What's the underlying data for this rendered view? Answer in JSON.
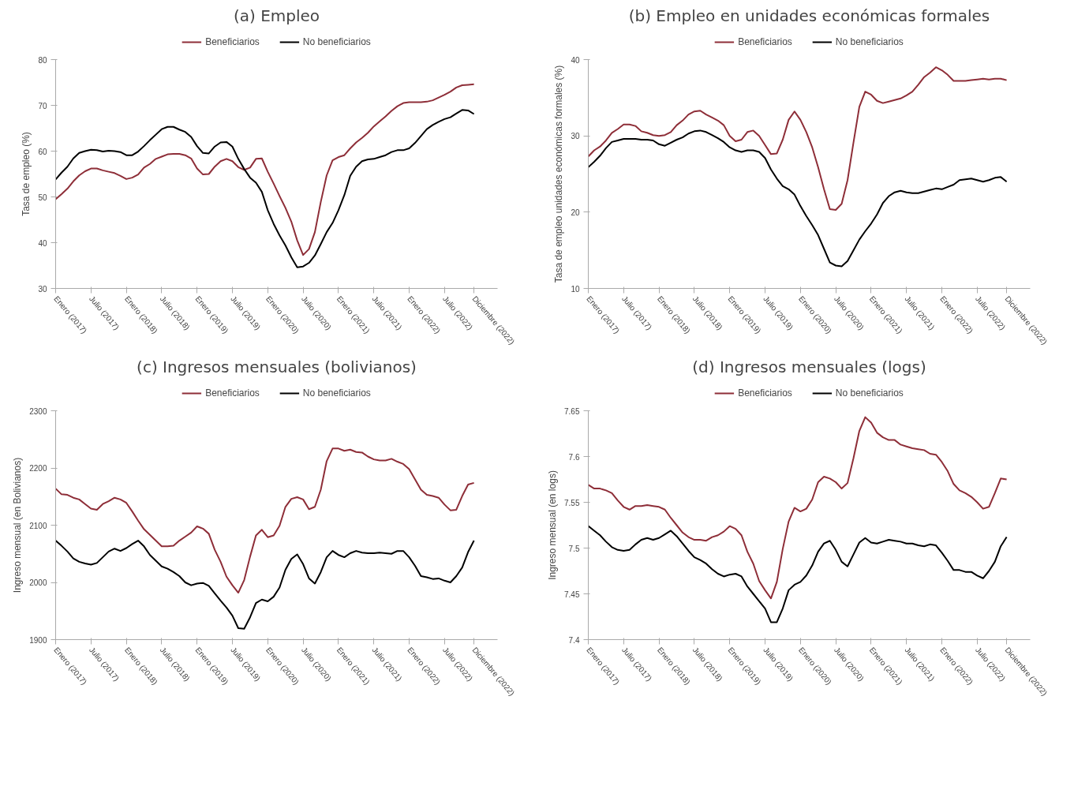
{
  "chart_data": [
    {
      "type": "line",
      "title": "(a) Empleo",
      "ylabel": "Tasa de empleo (%)",
      "legend": "top",
      "grid": false,
      "line_style": "solid",
      "marker": "none",
      "x": [
        "2017-01",
        "2017-02",
        "2017-03",
        "2017-04",
        "2017-05",
        "2017-06",
        "2017-07",
        "2017-08",
        "2017-09",
        "2017-10",
        "2017-11",
        "2017-12",
        "2018-01",
        "2018-02",
        "2018-03",
        "2018-04",
        "2018-05",
        "2018-06",
        "2018-07",
        "2018-08",
        "2018-09",
        "2018-10",
        "2018-11",
        "2018-12",
        "2019-01",
        "2019-02",
        "2019-03",
        "2019-04",
        "2019-05",
        "2019-06",
        "2019-07",
        "2019-08",
        "2019-09",
        "2019-10",
        "2019-11",
        "2019-12",
        "2020-01",
        "2020-02",
        "2020-03",
        "2020-04",
        "2020-05",
        "2020-06",
        "2020-07",
        "2020-08",
        "2020-09",
        "2020-10",
        "2020-11",
        "2020-12",
        "2021-01",
        "2021-02",
        "2021-03",
        "2021-04",
        "2021-05",
        "2021-06",
        "2021-07",
        "2021-08",
        "2021-09",
        "2021-10",
        "2021-11",
        "2021-12",
        "2022-01",
        "2022-02",
        "2022-03",
        "2022-04",
        "2022-05",
        "2022-06",
        "2022-07",
        "2022-08",
        "2022-09",
        "2022-10",
        "2022-11",
        "2022-12"
      ],
      "xlim": [
        "2017-01",
        "2023-04"
      ],
      "xticks": [
        {
          "value": "2017-01",
          "label": "Enero (2017)"
        },
        {
          "value": "2017-07",
          "label": "Julio (2017)"
        },
        {
          "value": "2018-01",
          "label": "Enero (2018)"
        },
        {
          "value": "2018-07",
          "label": "Julio (2018)"
        },
        {
          "value": "2019-01",
          "label": "Enero (2019)"
        },
        {
          "value": "2019-07",
          "label": "Julio (2019)"
        },
        {
          "value": "2020-01",
          "label": "Enero (2020)"
        },
        {
          "value": "2020-07",
          "label": "Julio (2020)"
        },
        {
          "value": "2021-01",
          "label": "Enero (2021)"
        },
        {
          "value": "2021-07",
          "label": "Julio (2021)"
        },
        {
          "value": "2022-01",
          "label": "Enero (2022)"
        },
        {
          "value": "2022-07",
          "label": "Julio (2022)"
        },
        {
          "value": "2022-12",
          "label": "Diciembre (2022)"
        }
      ],
      "ylim": [
        30,
        80
      ],
      "yticks": [
        30,
        40,
        50,
        60,
        70,
        80
      ],
      "series": [
        {
          "name": "Beneficiarios",
          "color": "#8e2e38",
          "values": [
            49.5,
            50.6,
            51.8,
            53.4,
            54.7,
            55.6,
            56.2,
            56.2,
            55.8,
            55.5,
            55.2,
            54.6,
            53.9,
            54.2,
            54.9,
            56.4,
            57.2,
            58.3,
            58.8,
            59.3,
            59.4,
            59.4,
            59.1,
            58.4,
            56.2,
            54.9,
            55.0,
            56.6,
            57.8,
            58.3,
            57.8,
            56.5,
            55.9,
            56.4,
            58.3,
            58.4,
            55.5,
            52.9,
            50.2,
            47.6,
            44.6,
            40.5,
            37.3,
            38.6,
            42.3,
            48.9,
            54.7,
            58.0,
            58.7,
            59.1,
            60.6,
            61.9,
            62.9,
            64.0,
            65.4,
            66.5,
            67.6,
            68.8,
            69.8,
            70.5,
            70.7,
            70.7,
            70.7,
            70.8,
            71.1,
            71.7,
            72.3,
            73.0,
            73.9,
            74.4,
            74.5,
            74.6
          ]
        },
        {
          "name": "No beneficiarios",
          "color": "#000000",
          "values": [
            53.8,
            55.3,
            56.6,
            58.4,
            59.6,
            60.0,
            60.3,
            60.2,
            59.9,
            60.1,
            60.0,
            59.8,
            59.1,
            59.1,
            59.9,
            61.1,
            62.4,
            63.6,
            64.8,
            65.3,
            65.3,
            64.7,
            64.2,
            63.1,
            61.1,
            59.6,
            59.5,
            61.0,
            61.9,
            62.0,
            61.0,
            58.3,
            56.1,
            54.2,
            53.1,
            51.1,
            47.1,
            44.1,
            41.6,
            39.4,
            36.8,
            34.6,
            34.8,
            35.6,
            37.2,
            39.7,
            42.3,
            44.3,
            47.1,
            50.4,
            54.6,
            56.6,
            57.8,
            58.2,
            58.3,
            58.7,
            59.1,
            59.8,
            60.2,
            60.2,
            60.6,
            61.8,
            63.3,
            64.8,
            65.7,
            66.4,
            67.0,
            67.4,
            68.2,
            69.0,
            68.9,
            68.1
          ]
        }
      ]
    },
    {
      "type": "line",
      "title": "(b) Empleo en unidades económicas formales",
      "ylabel": "Tasa de empleo unidades económicas formales (%)",
      "legend": "top",
      "grid": false,
      "line_style": "solid",
      "marker": "none",
      "x": [
        "2017-01",
        "2017-02",
        "2017-03",
        "2017-04",
        "2017-05",
        "2017-06",
        "2017-07",
        "2017-08",
        "2017-09",
        "2017-10",
        "2017-11",
        "2017-12",
        "2018-01",
        "2018-02",
        "2018-03",
        "2018-04",
        "2018-05",
        "2018-06",
        "2018-07",
        "2018-08",
        "2018-09",
        "2018-10",
        "2018-11",
        "2018-12",
        "2019-01",
        "2019-02",
        "2019-03",
        "2019-04",
        "2019-05",
        "2019-06",
        "2019-07",
        "2019-08",
        "2019-09",
        "2019-10",
        "2019-11",
        "2019-12",
        "2020-01",
        "2020-02",
        "2020-03",
        "2020-04",
        "2020-05",
        "2020-06",
        "2020-07",
        "2020-08",
        "2020-09",
        "2020-10",
        "2020-11",
        "2020-12",
        "2021-01",
        "2021-02",
        "2021-03",
        "2021-04",
        "2021-05",
        "2021-06",
        "2021-07",
        "2021-08",
        "2021-09",
        "2021-10",
        "2021-11",
        "2021-12",
        "2022-01",
        "2022-02",
        "2022-03",
        "2022-04",
        "2022-05",
        "2022-06",
        "2022-07",
        "2022-08",
        "2022-09",
        "2022-10",
        "2022-11",
        "2022-12"
      ],
      "xlim": [
        "2017-01",
        "2023-04"
      ],
      "xticks": [
        {
          "value": "2017-01",
          "label": "Enero (2017)"
        },
        {
          "value": "2017-07",
          "label": "Julio (2017)"
        },
        {
          "value": "2018-01",
          "label": "Enero (2018)"
        },
        {
          "value": "2018-07",
          "label": "Julio (2018)"
        },
        {
          "value": "2019-01",
          "label": "Enero (2019)"
        },
        {
          "value": "2019-07",
          "label": "Julio (2019)"
        },
        {
          "value": "2020-01",
          "label": "Enero (2020)"
        },
        {
          "value": "2020-07",
          "label": "Julio (2020)"
        },
        {
          "value": "2021-01",
          "label": "Enero (2021)"
        },
        {
          "value": "2021-07",
          "label": "Julio (2021)"
        },
        {
          "value": "2022-01",
          "label": "Enero (2022)"
        },
        {
          "value": "2022-07",
          "label": "Julio (2022)"
        },
        {
          "value": "2022-12",
          "label": "Diciembre (2022)"
        }
      ],
      "ylim": [
        10,
        40
      ],
      "yticks": [
        10,
        20,
        30,
        40
      ],
      "series": [
        {
          "name": "Beneficiarios",
          "color": "#8e2e38",
          "values": [
            27.3,
            28.1,
            28.6,
            29.4,
            30.4,
            30.9,
            31.5,
            31.5,
            31.3,
            30.6,
            30.4,
            30.1,
            30.0,
            30.1,
            30.5,
            31.4,
            32.0,
            32.8,
            33.2,
            33.3,
            32.8,
            32.4,
            32.0,
            31.4,
            30.0,
            29.3,
            29.5,
            30.5,
            30.7,
            30.0,
            28.8,
            27.6,
            27.7,
            29.5,
            32.1,
            33.2,
            32.1,
            30.5,
            28.5,
            25.9,
            23.0,
            20.4,
            20.3,
            21.1,
            24.2,
            29.1,
            33.8,
            35.8,
            35.4,
            34.6,
            34.3,
            34.5,
            34.7,
            34.9,
            35.3,
            35.8,
            36.7,
            37.7,
            38.3,
            39.0,
            38.6,
            38.0,
            37.2,
            37.2,
            37.2,
            37.3,
            37.4,
            37.5,
            37.4,
            37.5,
            37.5,
            37.3
          ]
        },
        {
          "name": "No beneficiarios",
          "color": "#000000",
          "values": [
            25.9,
            26.6,
            27.4,
            28.4,
            29.2,
            29.4,
            29.6,
            29.6,
            29.6,
            29.5,
            29.5,
            29.4,
            28.9,
            28.7,
            29.1,
            29.5,
            29.8,
            30.3,
            30.6,
            30.7,
            30.5,
            30.1,
            29.7,
            29.2,
            28.5,
            28.1,
            27.9,
            28.1,
            28.1,
            27.9,
            27.1,
            25.6,
            24.4,
            23.4,
            23.0,
            22.3,
            20.8,
            19.5,
            18.3,
            17.0,
            15.2,
            13.4,
            13.0,
            12.9,
            13.6,
            15.0,
            16.4,
            17.5,
            18.5,
            19.7,
            21.2,
            22.1,
            22.6,
            22.8,
            22.6,
            22.5,
            22.5,
            22.7,
            22.9,
            23.1,
            23.0,
            23.3,
            23.6,
            24.2,
            24.3,
            24.4,
            24.2,
            24.0,
            24.2,
            24.5,
            24.6,
            24.0
          ]
        }
      ]
    },
    {
      "type": "line",
      "title": "(c) Ingresos mensuales (bolivianos)",
      "ylabel": "Ingreso mensual (en Bolivianos)",
      "legend": "top",
      "grid": false,
      "line_style": "solid",
      "marker": "none",
      "x": [
        "2017-01",
        "2017-02",
        "2017-03",
        "2017-04",
        "2017-05",
        "2017-06",
        "2017-07",
        "2017-08",
        "2017-09",
        "2017-10",
        "2017-11",
        "2017-12",
        "2018-01",
        "2018-02",
        "2018-03",
        "2018-04",
        "2018-05",
        "2018-06",
        "2018-07",
        "2018-08",
        "2018-09",
        "2018-10",
        "2018-11",
        "2018-12",
        "2019-01",
        "2019-02",
        "2019-03",
        "2019-04",
        "2019-05",
        "2019-06",
        "2019-07",
        "2019-08",
        "2019-09",
        "2019-10",
        "2019-11",
        "2019-12",
        "2020-01",
        "2020-02",
        "2020-03",
        "2020-04",
        "2020-05",
        "2020-06",
        "2020-07",
        "2020-08",
        "2020-09",
        "2020-10",
        "2020-11",
        "2020-12",
        "2021-01",
        "2021-02",
        "2021-03",
        "2021-04",
        "2021-05",
        "2021-06",
        "2021-07",
        "2021-08",
        "2021-09",
        "2021-10",
        "2021-11",
        "2021-12",
        "2022-01",
        "2022-02",
        "2022-03",
        "2022-04",
        "2022-05",
        "2022-06",
        "2022-07",
        "2022-08",
        "2022-09",
        "2022-10",
        "2022-11",
        "2022-12"
      ],
      "xlim": [
        "2017-01",
        "2023-04"
      ],
      "xticks": [
        {
          "value": "2017-01",
          "label": "Enero (2017)"
        },
        {
          "value": "2017-07",
          "label": "Julio (2017)"
        },
        {
          "value": "2018-01",
          "label": "Enero (2018)"
        },
        {
          "value": "2018-07",
          "label": "Julio (2018)"
        },
        {
          "value": "2019-01",
          "label": "Enero (2019)"
        },
        {
          "value": "2019-07",
          "label": "Julio (2019)"
        },
        {
          "value": "2020-01",
          "label": "Enero (2020)"
        },
        {
          "value": "2020-07",
          "label": "Julio (2020)"
        },
        {
          "value": "2021-01",
          "label": "Enero (2021)"
        },
        {
          "value": "2021-07",
          "label": "Julio (2021)"
        },
        {
          "value": "2022-01",
          "label": "Enero (2022)"
        },
        {
          "value": "2022-07",
          "label": "Julio (2022)"
        },
        {
          "value": "2022-12",
          "label": "Diciembre (2022)"
        }
      ],
      "ylim": [
        1900,
        2300
      ],
      "yticks": [
        1900,
        2000,
        2100,
        2200,
        2300
      ],
      "series": [
        {
          "name": "Beneficiarios",
          "color": "#8e2e38",
          "values": [
            2164,
            2154,
            2153,
            2148,
            2145,
            2137,
            2129,
            2127,
            2137,
            2142,
            2148,
            2145,
            2139,
            2124,
            2108,
            2093,
            2083,
            2073,
            2063,
            2063,
            2064,
            2073,
            2080,
            2087,
            2098,
            2094,
            2085,
            2057,
            2036,
            2010,
            1995,
            1982,
            2004,
            2045,
            2082,
            2092,
            2079,
            2082,
            2099,
            2132,
            2146,
            2149,
            2145,
            2128,
            2132,
            2162,
            2212,
            2234,
            2234,
            2230,
            2232,
            2228,
            2227,
            2220,
            2215,
            2213,
            2213,
            2216,
            2211,
            2207,
            2198,
            2180,
            2162,
            2153,
            2151,
            2148,
            2136,
            2126,
            2127,
            2151,
            2171,
            2174
          ]
        },
        {
          "name": "No beneficiarios",
          "color": "#000000",
          "values": [
            2073,
            2064,
            2054,
            2042,
            2036,
            2033,
            2031,
            2034,
            2044,
            2054,
            2059,
            2055,
            2060,
            2067,
            2073,
            2063,
            2048,
            2038,
            2028,
            2024,
            2018,
            2011,
            2000,
            1995,
            1998,
            1999,
            1994,
            1981,
            1968,
            1956,
            1942,
            1920,
            1919,
            1939,
            1964,
            1970,
            1967,
            1975,
            1991,
            2022,
            2041,
            2049,
            2032,
            2007,
            1998,
            2018,
            2044,
            2055,
            2048,
            2044,
            2051,
            2055,
            2052,
            2051,
            2051,
            2052,
            2051,
            2050,
            2055,
            2055,
            2044,
            2029,
            2011,
            2009,
            2006,
            2007,
            2003,
            2000,
            2011,
            2026,
            2053,
            2073
          ]
        }
      ]
    },
    {
      "type": "line",
      "title": "(d) Ingresos mensuales (logs)",
      "ylabel": "Ingreso mensual (en logs)",
      "legend": "top",
      "grid": false,
      "line_style": "solid",
      "marker": "none",
      "x": [
        "2017-01",
        "2017-02",
        "2017-03",
        "2017-04",
        "2017-05",
        "2017-06",
        "2017-07",
        "2017-08",
        "2017-09",
        "2017-10",
        "2017-11",
        "2017-12",
        "2018-01",
        "2018-02",
        "2018-03",
        "2018-04",
        "2018-05",
        "2018-06",
        "2018-07",
        "2018-08",
        "2018-09",
        "2018-10",
        "2018-11",
        "2018-12",
        "2019-01",
        "2019-02",
        "2019-03",
        "2019-04",
        "2019-05",
        "2019-06",
        "2019-07",
        "2019-08",
        "2019-09",
        "2019-10",
        "2019-11",
        "2019-12",
        "2020-01",
        "2020-02",
        "2020-03",
        "2020-04",
        "2020-05",
        "2020-06",
        "2020-07",
        "2020-08",
        "2020-09",
        "2020-10",
        "2020-11",
        "2020-12",
        "2021-01",
        "2021-02",
        "2021-03",
        "2021-04",
        "2021-05",
        "2021-06",
        "2021-07",
        "2021-08",
        "2021-09",
        "2021-10",
        "2021-11",
        "2021-12",
        "2022-01",
        "2022-02",
        "2022-03",
        "2022-04",
        "2022-05",
        "2022-06",
        "2022-07",
        "2022-08",
        "2022-09",
        "2022-10",
        "2022-11",
        "2022-12"
      ],
      "xlim": [
        "2017-01",
        "2023-04"
      ],
      "xticks": [
        {
          "value": "2017-01",
          "label": "Enero (2017)"
        },
        {
          "value": "2017-07",
          "label": "Julio (2017)"
        },
        {
          "value": "2018-01",
          "label": "Enero (2018)"
        },
        {
          "value": "2018-07",
          "label": "Julio (2018)"
        },
        {
          "value": "2019-01",
          "label": "Enero (2019)"
        },
        {
          "value": "2019-07",
          "label": "Julio (2019)"
        },
        {
          "value": "2020-01",
          "label": "Enero (2020)"
        },
        {
          "value": "2020-07",
          "label": "Julio (2020)"
        },
        {
          "value": "2021-01",
          "label": "Enero (2021)"
        },
        {
          "value": "2021-07",
          "label": "Julio (2021)"
        },
        {
          "value": "2022-01",
          "label": "Enero (2022)"
        },
        {
          "value": "2022-07",
          "label": "Julio (2022)"
        },
        {
          "value": "2022-12",
          "label": "Diciembre (2022)"
        }
      ],
      "ylim": [
        7.4,
        7.65
      ],
      "yticks": [
        7.4,
        7.45,
        7.5,
        7.55,
        7.6,
        7.65
      ],
      "series": [
        {
          "name": "Beneficiarios",
          "color": "#8e2e38",
          "values": [
            7.569,
            7.565,
            7.565,
            7.563,
            7.56,
            7.552,
            7.545,
            7.542,
            7.546,
            7.546,
            7.547,
            7.546,
            7.545,
            7.542,
            7.533,
            7.525,
            7.517,
            7.512,
            7.509,
            7.509,
            7.508,
            7.512,
            7.514,
            7.518,
            7.524,
            7.521,
            7.514,
            7.496,
            7.483,
            7.464,
            7.454,
            7.445,
            7.463,
            7.499,
            7.529,
            7.544,
            7.54,
            7.543,
            7.553,
            7.572,
            7.578,
            7.576,
            7.572,
            7.565,
            7.571,
            7.598,
            7.628,
            7.643,
            7.637,
            7.626,
            7.621,
            7.618,
            7.618,
            7.613,
            7.611,
            7.609,
            7.608,
            7.607,
            7.603,
            7.602,
            7.594,
            7.584,
            7.57,
            7.563,
            7.56,
            7.556,
            7.55,
            7.543,
            7.545,
            7.56,
            7.576,
            7.575
          ]
        },
        {
          "name": "No beneficiarios",
          "color": "#000000",
          "values": [
            7.524,
            7.519,
            7.514,
            7.507,
            7.501,
            7.498,
            7.497,
            7.498,
            7.504,
            7.509,
            7.511,
            7.509,
            7.511,
            7.515,
            7.519,
            7.513,
            7.505,
            7.497,
            7.49,
            7.487,
            7.483,
            7.477,
            7.472,
            7.469,
            7.471,
            7.472,
            7.469,
            7.458,
            7.45,
            7.442,
            7.434,
            7.419,
            7.419,
            7.434,
            7.454,
            7.46,
            7.463,
            7.47,
            7.481,
            7.496,
            7.505,
            7.508,
            7.498,
            7.485,
            7.48,
            7.493,
            7.506,
            7.511,
            7.506,
            7.505,
            7.507,
            7.509,
            7.508,
            7.507,
            7.505,
            7.505,
            7.503,
            7.502,
            7.504,
            7.503,
            7.495,
            7.486,
            7.476,
            7.476,
            7.474,
            7.474,
            7.47,
            7.467,
            7.475,
            7.485,
            7.502,
            7.512
          ]
        }
      ]
    }
  ]
}
